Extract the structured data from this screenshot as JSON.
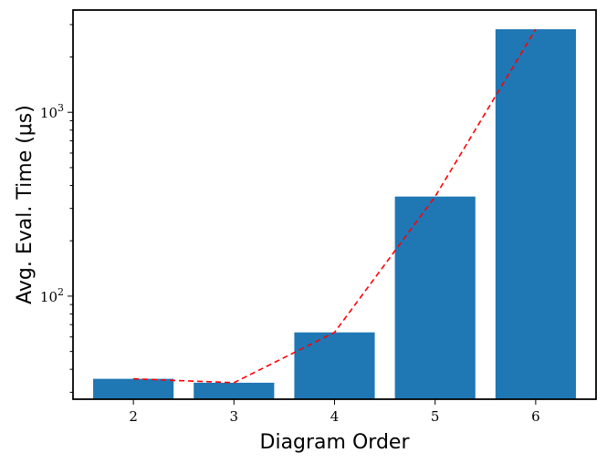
{
  "chart_data": {
    "type": "bar",
    "categories": [
      "2",
      "3",
      "4",
      "5",
      "6"
    ],
    "values": [
      35.5,
      33.8,
      63.5,
      348,
      2830
    ],
    "xlabel": "Diagram Order",
    "ylabel": "Avg. Eval. Time (μs)",
    "yscale": "log",
    "ylim": [
      27.5,
      3600
    ],
    "ytick_labels": [
      "10^2",
      "10^3"
    ],
    "ytick_values": [
      100,
      1000
    ],
    "grid": false,
    "legend": "none",
    "colors": {
      "bar": "#1f77b4",
      "trend_line": "#ff0000"
    },
    "trend_line": {
      "style": "dashed",
      "x": [
        "2",
        "3",
        "4",
        "5",
        "6"
      ],
      "values": [
        35.5,
        33.8,
        63.5,
        348,
        2830
      ]
    }
  }
}
